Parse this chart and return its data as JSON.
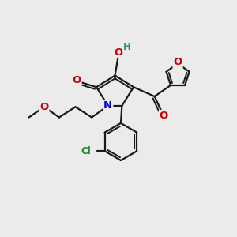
{
  "background_color": "#ebebeb",
  "bond_color": "#1a1a1a",
  "bond_width": 1.6,
  "atom_colors": {
    "O": "#cc0000",
    "N": "#0000cc",
    "Cl": "#228822",
    "H_teal": "#3a8a8a",
    "C": "#1a1a1a"
  },
  "figsize": [
    3.0,
    3.0
  ],
  "dpi": 100
}
